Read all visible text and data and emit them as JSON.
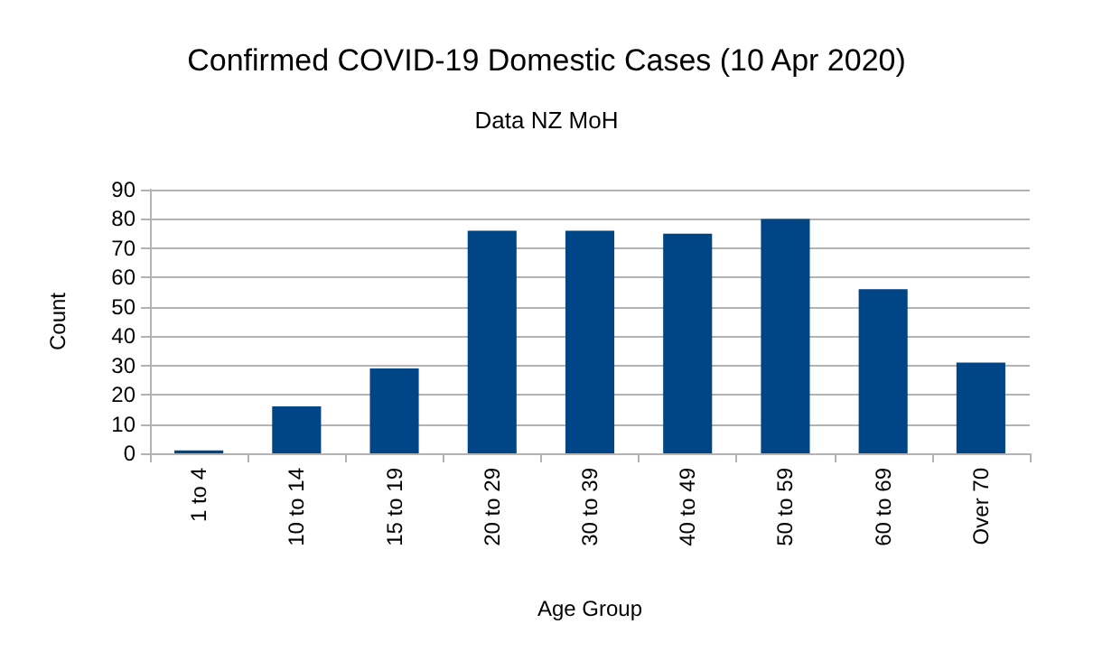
{
  "chart_data": {
    "type": "bar",
    "title": "Confirmed COVID-19 Domestic Cases (10 Apr 2020)",
    "subtitle": "Data NZ MoH",
    "xlabel": "Age Group",
    "ylabel": "Count",
    "categories": [
      "1 to 4",
      "10 to 14",
      "15 to 19",
      "20 to 29",
      "30 to 39",
      "40 to 49",
      "50 to 59",
      "60 to 69",
      "Over 70"
    ],
    "values": [
      1,
      16,
      29,
      76,
      76,
      75,
      80,
      56,
      31
    ],
    "color": "#004586",
    "ylim": [
      0,
      90
    ],
    "yticks": [
      0,
      10,
      20,
      30,
      40,
      50,
      60,
      70,
      80,
      90
    ],
    "grid": "y"
  }
}
